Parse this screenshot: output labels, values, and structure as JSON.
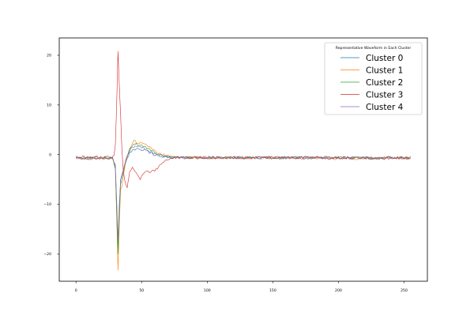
{
  "chart_data": {
    "type": "line",
    "title": "",
    "xlabel": "",
    "ylabel": "",
    "xlim": [
      -12.75,
      267.75
    ],
    "ylim": [
      -25.5,
      23.5
    ],
    "xticks": [
      0,
      50,
      100,
      150,
      200,
      250
    ],
    "yticks": [
      -20,
      -10,
      0,
      10,
      20
    ],
    "grid": false,
    "legend": {
      "title": "Representative Waveform in Each Cluster",
      "position": "top-right"
    },
    "x": {
      "start": 0,
      "end": 255,
      "count": 256
    },
    "series": [
      {
        "name": "Cluster 0",
        "color": "#1f77b4",
        "keypoints": [
          [
            0,
            -0.7
          ],
          [
            27,
            -0.7
          ],
          [
            30,
            -2
          ],
          [
            31,
            -10
          ],
          [
            32,
            -18.5
          ],
          [
            33,
            -11
          ],
          [
            34,
            -5
          ],
          [
            36,
            -3.5
          ],
          [
            38,
            -1.5
          ],
          [
            41,
            0.3
          ],
          [
            46,
            1.3
          ],
          [
            52,
            1.0
          ],
          [
            57,
            0.3
          ],
          [
            62,
            -0.2
          ],
          [
            68,
            -0.5
          ],
          [
            75,
            -0.6
          ],
          [
            255,
            -0.7
          ]
        ]
      },
      {
        "name": "Cluster 1",
        "color": "#ff7f0e",
        "keypoints": [
          [
            0,
            -0.8
          ],
          [
            28,
            -0.8
          ],
          [
            30,
            -3
          ],
          [
            31,
            -12
          ],
          [
            32,
            -23.3
          ],
          [
            33,
            -14
          ],
          [
            34,
            -7
          ],
          [
            35,
            -6.5
          ],
          [
            36,
            -4.5
          ],
          [
            38,
            -1.2
          ],
          [
            41,
            1.2
          ],
          [
            44,
            2.8
          ],
          [
            47,
            2.3
          ],
          [
            51,
            2.2
          ],
          [
            55,
            1.6
          ],
          [
            60,
            0.7
          ],
          [
            66,
            0
          ],
          [
            72,
            -0.4
          ],
          [
            80,
            -0.6
          ],
          [
            255,
            -0.8
          ]
        ]
      },
      {
        "name": "Cluster 2",
        "color": "#2ca02c",
        "keypoints": [
          [
            0,
            -0.6
          ],
          [
            28,
            -0.6
          ],
          [
            30,
            -3
          ],
          [
            31,
            -12
          ],
          [
            32,
            -20
          ],
          [
            33,
            -12
          ],
          [
            34,
            -6
          ],
          [
            36,
            -3.5
          ],
          [
            38,
            -1
          ],
          [
            41,
            1.2
          ],
          [
            45,
            2.2
          ],
          [
            50,
            1.8
          ],
          [
            55,
            1.2
          ],
          [
            60,
            0.4
          ],
          [
            66,
            -0.3
          ],
          [
            74,
            -0.6
          ],
          [
            255,
            -0.6
          ]
        ]
      },
      {
        "name": "Cluster 3",
        "color": "#d62728",
        "keypoints": [
          [
            0,
            -0.5
          ],
          [
            28,
            -0.5
          ],
          [
            29,
            -0.2
          ],
          [
            30,
            2
          ],
          [
            31,
            10
          ],
          [
            32,
            20.8
          ],
          [
            33,
            14
          ],
          [
            34,
            8
          ],
          [
            35,
            1
          ],
          [
            36,
            -3
          ],
          [
            37,
            -5
          ],
          [
            38,
            -6
          ],
          [
            39,
            -6.5
          ],
          [
            41,
            -3.5
          ],
          [
            43,
            -2.5
          ],
          [
            46,
            -3.5
          ],
          [
            49,
            -4.8
          ],
          [
            52,
            -3.5
          ],
          [
            56,
            -3.5
          ],
          [
            60,
            -3.2
          ],
          [
            63,
            -2.5
          ],
          [
            66,
            -1.6
          ],
          [
            69,
            -1.0
          ],
          [
            73,
            -0.7
          ],
          [
            80,
            -0.6
          ],
          [
            255,
            -0.6
          ]
        ]
      },
      {
        "name": "Cluster 4",
        "color": "#9467bd",
        "keypoints": [
          [
            0,
            -0.7
          ],
          [
            28,
            -0.7
          ],
          [
            30,
            -2.5
          ],
          [
            31,
            -9
          ],
          [
            32,
            -17
          ],
          [
            33,
            -10
          ],
          [
            34,
            -5
          ],
          [
            36,
            -3
          ],
          [
            38,
            -1
          ],
          [
            41,
            0.8
          ],
          [
            45,
            1.7
          ],
          [
            50,
            1.5
          ],
          [
            55,
            0.9
          ],
          [
            60,
            0.2
          ],
          [
            67,
            -0.4
          ],
          [
            75,
            -0.6
          ],
          [
            255,
            -0.7
          ]
        ]
      }
    ]
  }
}
